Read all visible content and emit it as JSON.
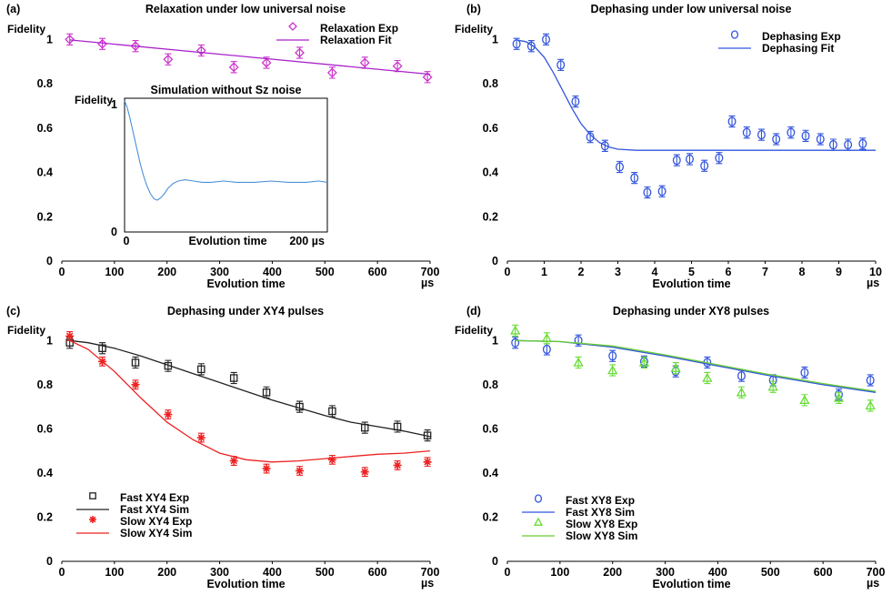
{
  "chart_data": [
    {
      "panel": "(a)",
      "type": "scatter",
      "title": "Relaxation under low universal noise",
      "ylabel": "Fidelity",
      "xlabel": "Evolution time",
      "xunit": "µs",
      "xlim": [
        0,
        700
      ],
      "ylim": [
        0,
        1.1
      ],
      "xticks": [
        0,
        100,
        200,
        300,
        400,
        500,
        600,
        700
      ],
      "yticks": [
        0,
        0.2,
        0.4,
        0.6,
        0.8,
        1
      ],
      "ytick_labels": [
        "0",
        "0.2",
        "0.4",
        "0.6",
        "0.8",
        "1"
      ],
      "legend_position": "top-right",
      "series": [
        {
          "name": "Relaxation Exp",
          "kind": "points",
          "marker": "diamond",
          "color": "#cc33cc",
          "x": [
            15,
            77,
            140,
            202,
            265,
            327,
            389,
            452,
            514,
            576,
            638,
            695
          ],
          "y": [
            1.0,
            0.98,
            0.97,
            0.91,
            0.95,
            0.875,
            0.895,
            0.94,
            0.85,
            0.895,
            0.88,
            0.83
          ],
          "err": [
            0.025,
            0.025,
            0.025,
            0.025,
            0.025,
            0.025,
            0.025,
            0.025,
            0.025,
            0.025,
            0.025,
            0.025
          ]
        },
        {
          "name": "Relaxation Fit",
          "kind": "line",
          "color": "#aa22cc",
          "x": [
            15,
            700
          ],
          "y": [
            0.998,
            0.843
          ]
        }
      ],
      "inset": {
        "type": "line",
        "title": "Simulation without Sz noise",
        "ylabel": "Fidelity",
        "xlabel": "Evolution time",
        "xunit": "µs",
        "xlim": [
          0,
          235
        ],
        "ylim": [
          0,
          1.05
        ],
        "xtick_labels": [
          "0",
          "200"
        ],
        "xtick_values": [
          0,
          200
        ],
        "ytick_labels": [
          "0",
          "1"
        ],
        "ytick_values": [
          0,
          1
        ],
        "series": [
          {
            "name": "Simulation",
            "color": "#4a90d9",
            "x": [
              0,
              3,
              6,
              10,
              14,
              18,
              22,
              26,
              30,
              34,
              38,
              42,
              46,
              50,
              56,
              62,
              70,
              80,
              90,
              100,
              115,
              130,
              150,
              170,
              190,
              210,
              225,
              235
            ],
            "y": [
              1.03,
              0.98,
              0.9,
              0.78,
              0.66,
              0.54,
              0.44,
              0.36,
              0.3,
              0.26,
              0.25,
              0.27,
              0.3,
              0.34,
              0.38,
              0.4,
              0.41,
              0.4,
              0.39,
              0.39,
              0.4,
              0.39,
              0.39,
              0.4,
              0.39,
              0.39,
              0.4,
              0.39
            ]
          }
        ]
      }
    },
    {
      "panel": "(b)",
      "type": "scatter",
      "title": "Dephasing under low universal noise",
      "ylabel": "Fidelity",
      "xlabel": "Evolution time",
      "xunit": "µs",
      "xlim": [
        0,
        10
      ],
      "ylim": [
        0,
        1.1
      ],
      "xticks": [
        0,
        1,
        2,
        3,
        4,
        5,
        6,
        7,
        8,
        9,
        10
      ],
      "yticks": [
        0,
        0.2,
        0.4,
        0.6,
        0.8,
        1
      ],
      "ytick_labels": [
        "0",
        "0.2",
        "0.4",
        "0.6",
        "0.8",
        "1"
      ],
      "legend_position": "top-right",
      "series": [
        {
          "name": "Dephasing Exp",
          "kind": "points",
          "marker": "circle",
          "color": "#3355dd",
          "x": [
            0.25,
            0.65,
            1.05,
            1.45,
            1.85,
            2.25,
            2.65,
            3.05,
            3.45,
            3.8,
            4.2,
            4.6,
            4.95,
            5.35,
            5.75,
            6.1,
            6.5,
            6.9,
            7.3,
            7.7,
            8.1,
            8.5,
            8.85,
            9.25,
            9.65
          ],
          "y": [
            0.98,
            0.97,
            1.0,
            0.885,
            0.72,
            0.56,
            0.52,
            0.425,
            0.375,
            0.31,
            0.315,
            0.455,
            0.46,
            0.43,
            0.465,
            0.63,
            0.58,
            0.57,
            0.55,
            0.58,
            0.565,
            0.55,
            0.525,
            0.525,
            0.53
          ],
          "err": [
            0.025,
            0.025,
            0.025,
            0.025,
            0.025,
            0.025,
            0.025,
            0.025,
            0.025,
            0.025,
            0.025,
            0.025,
            0.025,
            0.025,
            0.025,
            0.025,
            0.025,
            0.025,
            0.025,
            0.025,
            0.025,
            0.025,
            0.025,
            0.025,
            0.025
          ]
        },
        {
          "name": "Dephasing Fit",
          "kind": "line",
          "color": "#3355dd",
          "x": [
            0.25,
            0.5,
            0.75,
            1.0,
            1.25,
            1.5,
            1.75,
            2.0,
            2.25,
            2.5,
            2.75,
            3.0,
            3.5,
            4.0,
            5.0,
            6.0,
            7.0,
            8.0,
            9.0,
            10.0
          ],
          "y": [
            0.998,
            0.99,
            0.965,
            0.92,
            0.85,
            0.77,
            0.69,
            0.62,
            0.57,
            0.535,
            0.515,
            0.505,
            0.5,
            0.5,
            0.5,
            0.5,
            0.5,
            0.5,
            0.5,
            0.5
          ]
        }
      ]
    },
    {
      "panel": "(c)",
      "type": "scatter",
      "title": "Dephasing under XY4 pulses",
      "ylabel": "Fidelity",
      "xlabel": "Evolution time",
      "xunit": "µs",
      "xlim": [
        0,
        700
      ],
      "ylim": [
        0,
        1.1
      ],
      "xticks": [
        0,
        100,
        200,
        300,
        400,
        500,
        600,
        700
      ],
      "yticks": [
        0,
        0.2,
        0.4,
        0.6,
        0.8,
        1
      ],
      "ytick_labels": [
        "0",
        "0.2",
        "0.4",
        "0.6",
        "0.8",
        "1"
      ],
      "legend_position": "bottom-left",
      "series": [
        {
          "name": "Fast XY4 Exp",
          "kind": "points",
          "marker": "square",
          "color": "#222222",
          "x": [
            15,
            77,
            140,
            202,
            265,
            327,
            389,
            452,
            514,
            576,
            638,
            695
          ],
          "y": [
            0.99,
            0.965,
            0.9,
            0.885,
            0.87,
            0.83,
            0.765,
            0.7,
            0.68,
            0.605,
            0.61,
            0.57
          ],
          "err": [
            0.025,
            0.025,
            0.025,
            0.025,
            0.025,
            0.025,
            0.025,
            0.025,
            0.025,
            0.025,
            0.025,
            0.025
          ]
        },
        {
          "name": "Fast XY4 Sim",
          "kind": "line",
          "color": "#222222",
          "x": [
            15,
            50,
            100,
            150,
            200,
            250,
            300,
            350,
            400,
            450,
            500,
            550,
            600,
            650,
            700
          ],
          "y": [
            1.0,
            0.99,
            0.965,
            0.93,
            0.89,
            0.85,
            0.81,
            0.77,
            0.73,
            0.695,
            0.66,
            0.63,
            0.61,
            0.59,
            0.565
          ]
        },
        {
          "name": "Slow XY4 Exp",
          "kind": "points",
          "marker": "star",
          "color": "#ee2222",
          "x": [
            15,
            77,
            140,
            202,
            265,
            327,
            389,
            452,
            514,
            576,
            638,
            695
          ],
          "y": [
            1.02,
            0.905,
            0.8,
            0.665,
            0.56,
            0.455,
            0.42,
            0.41,
            0.46,
            0.405,
            0.435,
            0.45
          ],
          "err": [
            0.02,
            0.02,
            0.02,
            0.02,
            0.02,
            0.02,
            0.02,
            0.02,
            0.02,
            0.02,
            0.02,
            0.02
          ]
        },
        {
          "name": "Slow XY4 Sim",
          "kind": "line",
          "color": "#ee2222",
          "x": [
            15,
            50,
            100,
            150,
            200,
            250,
            300,
            350,
            400,
            450,
            500,
            550,
            600,
            650,
            700
          ],
          "y": [
            1.0,
            0.96,
            0.86,
            0.74,
            0.63,
            0.55,
            0.49,
            0.46,
            0.45,
            0.455,
            0.465,
            0.475,
            0.485,
            0.49,
            0.5
          ]
        }
      ]
    },
    {
      "panel": "(d)",
      "type": "scatter",
      "title": "Dephasing under XY8 pulses",
      "ylabel": "Fidelity",
      "xlabel": "Evolution time",
      "xunit": "µs",
      "xlim": [
        0,
        700
      ],
      "ylim": [
        0,
        1.1
      ],
      "xticks": [
        0,
        100,
        200,
        300,
        400,
        500,
        600,
        700
      ],
      "yticks": [
        0,
        0.2,
        0.4,
        0.6,
        0.8,
        1
      ],
      "ytick_labels": [
        "0",
        "0.2",
        "0.4",
        "0.6",
        "0.8",
        "1"
      ],
      "legend_position": "bottom-left",
      "series": [
        {
          "name": "Fast XY8 Exp",
          "kind": "points",
          "marker": "circle",
          "color": "#3355dd",
          "x": [
            15,
            75,
            135,
            200,
            260,
            320,
            380,
            445,
            505,
            565,
            630,
            690
          ],
          "y": [
            0.99,
            0.96,
            1.0,
            0.93,
            0.905,
            0.86,
            0.9,
            0.84,
            0.82,
            0.855,
            0.755,
            0.82
          ],
          "err": [
            0.025,
            0.025,
            0.025,
            0.025,
            0.025,
            0.025,
            0.025,
            0.025,
            0.025,
            0.025,
            0.025,
            0.025
          ]
        },
        {
          "name": "Fast XY8 Sim",
          "kind": "line",
          "color": "#3355dd",
          "x": [
            15,
            100,
            200,
            300,
            400,
            500,
            600,
            700
          ],
          "y": [
            1.0,
            0.995,
            0.97,
            0.93,
            0.885,
            0.84,
            0.8,
            0.765
          ]
        },
        {
          "name": "Slow XY8 Exp",
          "kind": "points",
          "marker": "triangle",
          "color": "#66dd33",
          "x": [
            15,
            75,
            135,
            200,
            260,
            320,
            380,
            445,
            505,
            565,
            630,
            690
          ],
          "y": [
            1.045,
            1.01,
            0.9,
            0.865,
            0.9,
            0.875,
            0.83,
            0.765,
            0.79,
            0.73,
            0.74,
            0.705
          ],
          "err": [
            0.025,
            0.025,
            0.025,
            0.025,
            0.025,
            0.025,
            0.025,
            0.025,
            0.025,
            0.025,
            0.025,
            0.025
          ]
        },
        {
          "name": "Slow XY8 Sim",
          "kind": "line",
          "color": "#66cc33",
          "x": [
            15,
            100,
            200,
            300,
            400,
            500,
            600,
            700
          ],
          "y": [
            1.0,
            0.995,
            0.975,
            0.935,
            0.89,
            0.845,
            0.805,
            0.77
          ]
        }
      ]
    }
  ]
}
